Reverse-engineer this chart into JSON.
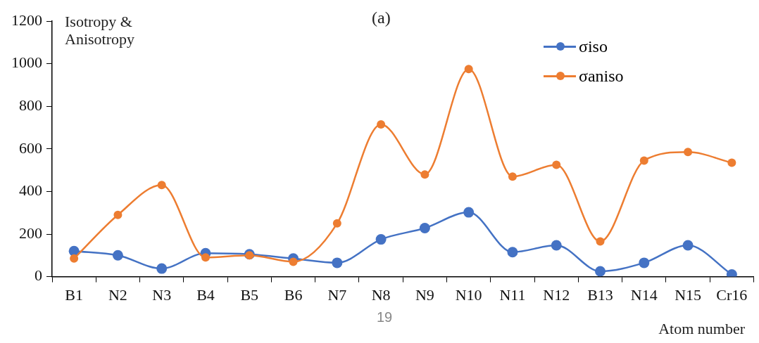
{
  "chart_data": {
    "type": "line",
    "title": "(a)",
    "ylabel": "Isotropy & Anisotropy",
    "xlabel": "Atom number",
    "annotations": [
      "19"
    ],
    "categories": [
      "B1",
      "N2",
      "N3",
      "B4",
      "B5",
      "B6",
      "N7",
      "N8",
      "N9",
      "N10",
      "N11",
      "N12",
      "B13",
      "N14",
      "N15",
      "Cr16"
    ],
    "series": [
      {
        "name": "σiso",
        "color": "#4472c4",
        "values": [
          120,
          100,
          38,
          110,
          105,
          85,
          65,
          175,
          228,
          302,
          115,
          147,
          25,
          65,
          147,
          10
        ]
      },
      {
        "name": "σaniso",
        "color": "#ed7d31",
        "values": [
          85,
          290,
          430,
          90,
          100,
          70,
          250,
          715,
          480,
          975,
          470,
          525,
          165,
          545,
          585,
          535
        ]
      }
    ],
    "ylim": [
      0,
      1200
    ],
    "yticks": [
      0,
      200,
      400,
      600,
      800,
      1000,
      1200
    ],
    "grid": false,
    "legend": "top right",
    "marker": "circle",
    "line_style": "solid"
  }
}
